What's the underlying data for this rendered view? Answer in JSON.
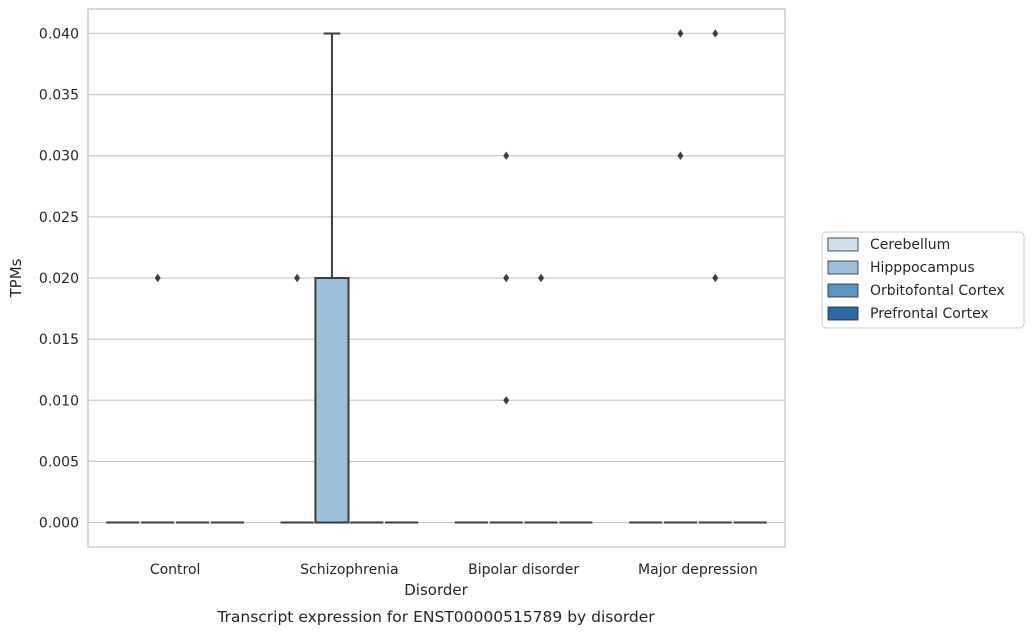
{
  "chart_data": {
    "type": "box",
    "xlabel": "Disorder",
    "ylabel": "TPMs",
    "caption": "Transcript expression for ENST00000515789 by disorder",
    "ylim": [
      -0.002,
      0.042
    ],
    "yticks": [
      "0.000",
      "0.005",
      "0.010",
      "0.015",
      "0.020",
      "0.025",
      "0.030",
      "0.035",
      "0.040"
    ],
    "ytick_values": [
      0,
      0.005,
      0.01,
      0.015,
      0.02,
      0.025,
      0.03,
      0.035,
      0.04
    ],
    "grid": "horizontal",
    "legend_position": "right",
    "categories": [
      "Control",
      "Schizophrenia",
      "Bipolar disorder",
      "Major depression"
    ],
    "series": [
      {
        "name": "Cerebellum",
        "color": "#d0e0ef",
        "boxes": [
          {
            "q1": 0,
            "median": 0,
            "q3": 0,
            "whisker_low": 0,
            "whisker_high": 0,
            "outliers": []
          },
          {
            "q1": 0,
            "median": 0,
            "q3": 0,
            "whisker_low": 0,
            "whisker_high": 0,
            "outliers": []
          },
          {
            "q1": 0,
            "median": 0,
            "q3": 0,
            "whisker_low": 0,
            "whisker_high": 0,
            "outliers": []
          },
          {
            "q1": 0,
            "median": 0,
            "q3": 0,
            "whisker_low": 0,
            "whisker_high": 0,
            "outliers": []
          }
        ]
      },
      {
        "name": "Hipppocampus",
        "color": "#9cc0db",
        "boxes": [
          {
            "q1": 0,
            "median": 0,
            "q3": 0,
            "whisker_low": 0,
            "whisker_high": 0,
            "outliers": [
              0.02
            ]
          },
          {
            "q1": 0,
            "median": 0,
            "q3": 0.02,
            "whisker_low": 0,
            "whisker_high": 0.04,
            "outliers": []
          },
          {
            "q1": 0,
            "median": 0,
            "q3": 0,
            "whisker_low": 0,
            "whisker_high": 0,
            "outliers": [
              0.02,
              0.01,
              0.03
            ]
          },
          {
            "q1": 0,
            "median": 0,
            "q3": 0,
            "whisker_low": 0,
            "whisker_high": 0,
            "outliers": [
              0.04,
              0.03
            ]
          }
        ]
      },
      {
        "name": "Orbitofontal Cortex",
        "color": "#5b95c2",
        "boxes": [
          {
            "q1": 0,
            "median": 0,
            "q3": 0,
            "whisker_low": 0,
            "whisker_high": 0,
            "outliers": []
          },
          {
            "q1": 0,
            "median": 0,
            "q3": 0,
            "whisker_low": 0,
            "whisker_high": 0,
            "outliers": []
          },
          {
            "q1": 0,
            "median": 0,
            "q3": 0,
            "whisker_low": 0,
            "whisker_high": 0,
            "outliers": [
              0.02
            ]
          },
          {
            "q1": 0,
            "median": 0,
            "q3": 0,
            "whisker_low": 0,
            "whisker_high": 0,
            "outliers": [
              0.04,
              0.02
            ]
          }
        ]
      },
      {
        "name": "Prefrontal Cortex",
        "color": "#2a68a6",
        "boxes": [
          {
            "q1": 0,
            "median": 0,
            "q3": 0,
            "whisker_low": 0,
            "whisker_high": 0,
            "outliers": []
          },
          {
            "q1": 0,
            "median": 0,
            "q3": 0,
            "whisker_low": 0,
            "whisker_high": 0,
            "outliers": []
          },
          {
            "q1": 0,
            "median": 0,
            "q3": 0,
            "whisker_low": 0,
            "whisker_high": 0,
            "outliers": []
          },
          {
            "q1": 0,
            "median": 0,
            "q3": 0,
            "whisker_low": 0,
            "whisker_high": 0,
            "outliers": []
          }
        ]
      }
    ],
    "extra_outliers": [
      {
        "category": 1,
        "value": 0.02,
        "series": 0
      }
    ]
  }
}
